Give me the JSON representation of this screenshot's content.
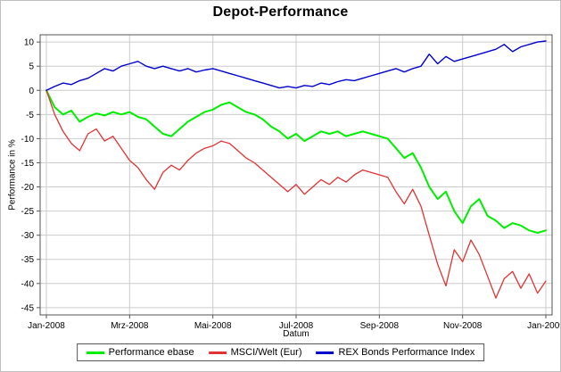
{
  "chart_data": {
    "type": "line",
    "title": "Depot-Performance",
    "xlabel": "Datum",
    "ylabel": "Performance in %",
    "xlim": [
      -0.15,
      12.15
    ],
    "ylim": [
      -46.5,
      11.5
    ],
    "grid": true,
    "grid_color": "#cccccc",
    "axis_color": "#555555",
    "legend_position": "bottom",
    "y_ticks": [
      10,
      5,
      0,
      -5,
      -10,
      -15,
      -20,
      -25,
      -30,
      -35,
      -40,
      -45
    ],
    "x_ticks": {
      "positions": [
        0,
        2,
        4,
        6,
        8,
        10,
        12
      ],
      "labels": [
        "Jan-2008",
        "Mrz-2008",
        "Mai-2008",
        "Jul-2008",
        "Sep-2008",
        "Nov-2008",
        "Jan-2009"
      ]
    },
    "x": [
      0,
      0.2,
      0.4,
      0.6,
      0.8,
      1,
      1.2,
      1.4,
      1.6,
      1.8,
      2,
      2.2,
      2.4,
      2.6,
      2.8,
      3,
      3.2,
      3.4,
      3.6,
      3.8,
      4,
      4.2,
      4.4,
      4.6,
      4.8,
      5,
      5.2,
      5.4,
      5.6,
      5.8,
      6,
      6.2,
      6.4,
      6.6,
      6.8,
      7,
      7.2,
      7.4,
      7.6,
      7.8,
      8,
      8.2,
      8.4,
      8.6,
      8.8,
      9,
      9.2,
      9.4,
      9.6,
      9.8,
      10,
      10.2,
      10.4,
      10.6,
      10.8,
      11,
      11.2,
      11.4,
      11.6,
      11.8,
      12
    ],
    "series": [
      {
        "name": "Performance ebase",
        "color": "#00ee00",
        "width": 2,
        "values": [
          0,
          -3.5,
          -5,
          -4.2,
          -6.5,
          -5.5,
          -4.8,
          -5.2,
          -4.5,
          -5,
          -4.5,
          -5.5,
          -6,
          -7.5,
          -9,
          -9.5,
          -8,
          -6.5,
          -5.5,
          -4.5,
          -4,
          -3,
          -2.5,
          -3.5,
          -4.5,
          -5,
          -6,
          -7.5,
          -8.5,
          -10,
          -9,
          -10.5,
          -9.5,
          -8.5,
          -9,
          -8.5,
          -9.5,
          -9,
          -8.5,
          -9,
          -9.5,
          -10,
          -12,
          -14,
          -13,
          -16,
          -20,
          -22.5,
          -21,
          -25,
          -27.5,
          -24,
          -22.5,
          -26,
          -27,
          -28.5,
          -27.5,
          -28,
          -29,
          -29.5,
          -29
        ]
      },
      {
        "name": "MSCI/Welt (Eur)",
        "color": "#e23333",
        "width": 1.3,
        "values": [
          0,
          -5,
          -8.5,
          -11,
          -12.5,
          -9,
          -8,
          -10.5,
          -9.5,
          -12,
          -14.5,
          -16,
          -18.5,
          -20.5,
          -17,
          -15.5,
          -16.5,
          -14.5,
          -13,
          -12,
          -11.5,
          -10.5,
          -11,
          -12.5,
          -14,
          -15,
          -16.5,
          -18,
          -19.5,
          -21,
          -19.5,
          -21.5,
          -20,
          -18.5,
          -19.5,
          -18,
          -19,
          -17.5,
          -16.5,
          -17,
          -17.5,
          -18,
          -21,
          -23.5,
          -20.5,
          -24,
          -30,
          -36,
          -40.5,
          -33,
          -35.5,
          -31,
          -34,
          -38.5,
          -43,
          -39,
          -37.5,
          -41,
          -38,
          -42,
          -39.5
        ]
      },
      {
        "name": "REX Bonds Performance Index",
        "color": "#0000cc",
        "width": 1.4,
        "values": [
          0,
          0.8,
          1.5,
          1.2,
          2,
          2.5,
          3.5,
          4.5,
          4,
          5,
          5.5,
          6,
          5,
          4.5,
          5,
          4.5,
          4,
          4.5,
          3.8,
          4.2,
          4.5,
          4,
          3.5,
          3,
          2.5,
          2,
          1.5,
          1,
          0.5,
          0.8,
          0.5,
          1,
          0.8,
          1.5,
          1.2,
          1.8,
          2.2,
          2,
          2.5,
          3,
          3.5,
          4,
          4.5,
          3.8,
          4.5,
          5,
          7.5,
          5.5,
          7,
          6,
          6.5,
          7,
          7.5,
          8,
          8.5,
          9.5,
          8,
          9,
          9.5,
          10,
          10.2
        ]
      }
    ]
  }
}
